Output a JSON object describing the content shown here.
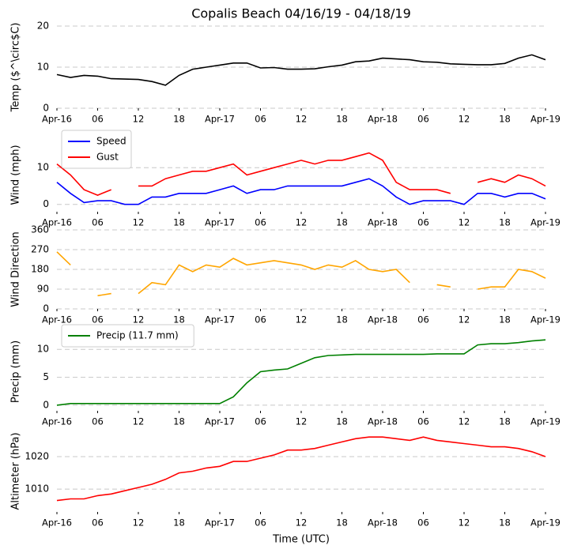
{
  "chart_data": [
    {
      "type": "line",
      "title": "Copalis Beach 04/16/19 - 04/18/19",
      "ylabel": "Temp ($^\\circ$C)",
      "x": [
        0,
        2,
        4,
        6,
        8,
        10,
        12,
        14,
        16,
        18,
        20,
        22,
        24,
        26,
        28,
        30,
        32,
        34,
        36,
        38,
        40,
        42,
        44,
        46,
        48,
        50,
        52,
        54,
        56,
        58,
        60,
        62,
        64,
        66,
        68,
        70,
        72
      ],
      "xlim": [
        0,
        72
      ],
      "xticks": [
        {
          "value": 0,
          "label": "Apr-16"
        },
        {
          "value": 6,
          "label": "06"
        },
        {
          "value": 12,
          "label": "12"
        },
        {
          "value": 18,
          "label": "18"
        },
        {
          "value": 24,
          "label": "Apr-17"
        },
        {
          "value": 30,
          "label": "06"
        },
        {
          "value": 36,
          "label": "12"
        },
        {
          "value": 42,
          "label": "18"
        },
        {
          "value": 48,
          "label": "Apr-18"
        },
        {
          "value": 54,
          "label": "06"
        },
        {
          "value": 60,
          "label": "12"
        },
        {
          "value": 66,
          "label": "18"
        },
        {
          "value": 72,
          "label": "Apr-19"
        }
      ],
      "ylim": [
        0,
        20
      ],
      "yticks": [
        0,
        10,
        20
      ],
      "grid": true,
      "series": [
        {
          "name": "Temp",
          "color": "#000000",
          "values": [
            8.2,
            7.5,
            8,
            7.8,
            7.2,
            7.1,
            7,
            6.5,
            5.6,
            8,
            9.5,
            10,
            10.5,
            11,
            11,
            9.8,
            9.9,
            9.5,
            9.5,
            9.6,
            10.1,
            10.5,
            11.3,
            11.5,
            12.2,
            12,
            11.8,
            11.3,
            11.2,
            10.8,
            10.7,
            10.6,
            10.6,
            10.9,
            12.2,
            13,
            11.8
          ]
        }
      ]
    },
    {
      "type": "line",
      "ylabel": "Wind (mph)",
      "x": [
        0,
        2,
        4,
        6,
        8,
        10,
        12,
        14,
        16,
        18,
        20,
        22,
        24,
        26,
        28,
        30,
        32,
        34,
        36,
        38,
        40,
        42,
        44,
        46,
        48,
        50,
        52,
        54,
        56,
        58,
        60,
        62,
        64,
        66,
        68,
        70,
        72
      ],
      "xlim": [
        0,
        72
      ],
      "xticks": [
        {
          "value": 0,
          "label": "Apr-16"
        },
        {
          "value": 6,
          "label": "06"
        },
        {
          "value": 12,
          "label": "12"
        },
        {
          "value": 18,
          "label": "18"
        },
        {
          "value": 24,
          "label": "Apr-17"
        },
        {
          "value": 30,
          "label": "06"
        },
        {
          "value": 36,
          "label": "12"
        },
        {
          "value": 42,
          "label": "18"
        },
        {
          "value": 48,
          "label": "Apr-18"
        },
        {
          "value": 54,
          "label": "06"
        },
        {
          "value": 60,
          "label": "12"
        },
        {
          "value": 66,
          "label": "18"
        },
        {
          "value": 72,
          "label": "Apr-19"
        }
      ],
      "ylim": [
        -2,
        18
      ],
      "yticks": [
        0,
        10
      ],
      "grid": true,
      "legend": "upper left",
      "series": [
        {
          "name": "Speed",
          "color": "#0000ff",
          "values": [
            6,
            3,
            0.5,
            1,
            1,
            0,
            0,
            2,
            2,
            3,
            3,
            3,
            4,
            5,
            3,
            4,
            4,
            5,
            5,
            5,
            5,
            5,
            6,
            7,
            5,
            2,
            0,
            1,
            1,
            1,
            0,
            3,
            3,
            2,
            3,
            3,
            1.5
          ]
        },
        {
          "name": "Gust",
          "color": "#ff0000",
          "values": [
            11,
            8,
            4,
            2.5,
            4,
            null,
            5,
            5,
            7,
            8,
            9,
            9,
            10,
            11,
            8,
            9,
            10,
            11,
            12,
            11,
            12,
            12,
            13,
            14,
            12,
            6,
            4,
            4,
            4,
            3,
            null,
            6,
            7,
            6,
            8,
            7,
            5
          ]
        }
      ]
    },
    {
      "type": "line",
      "ylabel": "Wind Direction",
      "x": [
        0,
        2,
        4,
        6,
        8,
        10,
        12,
        14,
        16,
        18,
        20,
        22,
        24,
        26,
        28,
        30,
        32,
        34,
        36,
        38,
        40,
        42,
        44,
        46,
        48,
        50,
        52,
        54,
        56,
        58,
        60,
        62,
        64,
        66,
        68,
        70,
        72
      ],
      "xlim": [
        0,
        72
      ],
      "xticks": [
        {
          "value": 0,
          "label": "Apr-16"
        },
        {
          "value": 6,
          "label": "06"
        },
        {
          "value": 12,
          "label": "12"
        },
        {
          "value": 18,
          "label": "18"
        },
        {
          "value": 24,
          "label": "Apr-17"
        },
        {
          "value": 30,
          "label": "06"
        },
        {
          "value": 36,
          "label": "12"
        },
        {
          "value": 42,
          "label": "18"
        },
        {
          "value": 48,
          "label": "Apr-18"
        },
        {
          "value": 54,
          "label": "06"
        },
        {
          "value": 60,
          "label": "12"
        },
        {
          "value": 66,
          "label": "18"
        },
        {
          "value": 72,
          "label": "Apr-19"
        }
      ],
      "ylim": [
        0,
        360
      ],
      "yticks": [
        0,
        90,
        180,
        270,
        360
      ],
      "grid": true,
      "series": [
        {
          "name": "Wind Direction",
          "color": "#ffa500",
          "values": [
            260,
            200,
            null,
            60,
            70,
            null,
            70,
            120,
            110,
            200,
            170,
            200,
            190,
            230,
            200,
            210,
            220,
            210,
            200,
            180,
            200,
            190,
            220,
            180,
            170,
            180,
            120,
            null,
            110,
            100,
            null,
            90,
            100,
            100,
            180,
            170,
            140
          ]
        }
      ]
    },
    {
      "type": "line",
      "ylabel": "Precip (mm)",
      "x": [
        0,
        2,
        4,
        6,
        8,
        10,
        12,
        14,
        16,
        18,
        20,
        22,
        24,
        26,
        28,
        30,
        32,
        34,
        36,
        38,
        40,
        42,
        44,
        46,
        48,
        50,
        52,
        54,
        56,
        58,
        60,
        62,
        64,
        66,
        68,
        70,
        72
      ],
      "xlim": [
        0,
        72
      ],
      "xticks": [
        {
          "value": 0,
          "label": "Apr-16"
        },
        {
          "value": 6,
          "label": "06"
        },
        {
          "value": 12,
          "label": "12"
        },
        {
          "value": 18,
          "label": "18"
        },
        {
          "value": 24,
          "label": "Apr-17"
        },
        {
          "value": 30,
          "label": "06"
        },
        {
          "value": 36,
          "label": "12"
        },
        {
          "value": 42,
          "label": "18"
        },
        {
          "value": 48,
          "label": "Apr-18"
        },
        {
          "value": 54,
          "label": "06"
        },
        {
          "value": 60,
          "label": "12"
        },
        {
          "value": 66,
          "label": "18"
        },
        {
          "value": 72,
          "label": "Apr-19"
        }
      ],
      "ylim": [
        -1,
        13
      ],
      "yticks": [
        0,
        5,
        10
      ],
      "grid": true,
      "legend": "upper left",
      "series": [
        {
          "name": "Precip (11.7 mm)",
          "color": "#008000",
          "values": [
            0,
            0.3,
            0.3,
            0.3,
            0.3,
            0.3,
            0.3,
            0.3,
            0.3,
            0.3,
            0.3,
            0.3,
            0.3,
            1.5,
            4,
            6,
            6.3,
            6.5,
            7.5,
            8.5,
            8.9,
            9,
            9.1,
            9.1,
            9.1,
            9.1,
            9.1,
            9.1,
            9.2,
            9.2,
            9.2,
            10.8,
            11,
            11,
            11.2,
            11.5,
            11.7
          ]
        }
      ]
    },
    {
      "type": "line",
      "ylabel": "Altimeter (hPa)",
      "xlabel": "Time (UTC)",
      "x": [
        0,
        2,
        4,
        6,
        8,
        10,
        12,
        14,
        16,
        18,
        20,
        22,
        24,
        26,
        28,
        30,
        32,
        34,
        36,
        38,
        40,
        42,
        44,
        46,
        48,
        50,
        52,
        54,
        56,
        58,
        60,
        62,
        64,
        66,
        68,
        70,
        72
      ],
      "xlim": [
        0,
        72
      ],
      "xticks": [
        {
          "value": 0,
          "label": "Apr-16"
        },
        {
          "value": 6,
          "label": "06"
        },
        {
          "value": 12,
          "label": "12"
        },
        {
          "value": 18,
          "label": "18"
        },
        {
          "value": 24,
          "label": "Apr-17"
        },
        {
          "value": 30,
          "label": "06"
        },
        {
          "value": 36,
          "label": "12"
        },
        {
          "value": 42,
          "label": "18"
        },
        {
          "value": 48,
          "label": "Apr-18"
        },
        {
          "value": 54,
          "label": "06"
        },
        {
          "value": 60,
          "label": "12"
        },
        {
          "value": 66,
          "label": "18"
        },
        {
          "value": 72,
          "label": "Apr-19"
        }
      ],
      "ylim": [
        1003,
        1028
      ],
      "yticks": [
        1010,
        1020
      ],
      "grid": true,
      "series": [
        {
          "name": "Altimeter",
          "color": "#ff0000",
          "values": [
            1006.5,
            1007,
            1007,
            1008,
            1008.5,
            1009.5,
            1010.5,
            1011.5,
            1013,
            1015,
            1015.5,
            1016.5,
            1017,
            1018.5,
            1018.5,
            1019.5,
            1020.5,
            1022,
            1022,
            1022.5,
            1023.5,
            1024.5,
            1025.5,
            1026,
            1026,
            1025.5,
            1025,
            1026,
            1025,
            1024.5,
            1024,
            1023.5,
            1023,
            1023,
            1022.5,
            1021.5,
            1020
          ]
        }
      ]
    }
  ]
}
